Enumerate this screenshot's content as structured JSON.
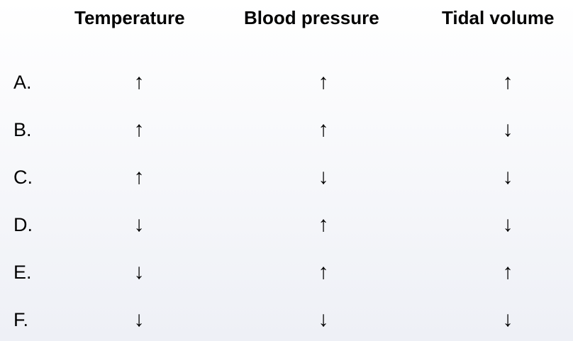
{
  "headers": {
    "temperature": "Temperature",
    "blood_pressure": "Blood pressure",
    "tidal_volume": "Tidal volume"
  },
  "rows": [
    {
      "label": "A.",
      "temperature": "↑",
      "blood_pressure": "↑",
      "tidal_volume": "↑"
    },
    {
      "label": "B.",
      "temperature": "↑",
      "blood_pressure": "↑",
      "tidal_volume": "↓"
    },
    {
      "label": "C.",
      "temperature": "↑",
      "blood_pressure": "↓",
      "tidal_volume": "↓"
    },
    {
      "label": "D.",
      "temperature": "↓",
      "blood_pressure": "↑",
      "tidal_volume": "↓"
    },
    {
      "label": "E.",
      "temperature": "↓",
      "blood_pressure": "↑",
      "tidal_volume": "↑"
    },
    {
      "label": "F.",
      "temperature": "↓",
      "blood_pressure": "↓",
      "tidal_volume": "↓"
    }
  ]
}
